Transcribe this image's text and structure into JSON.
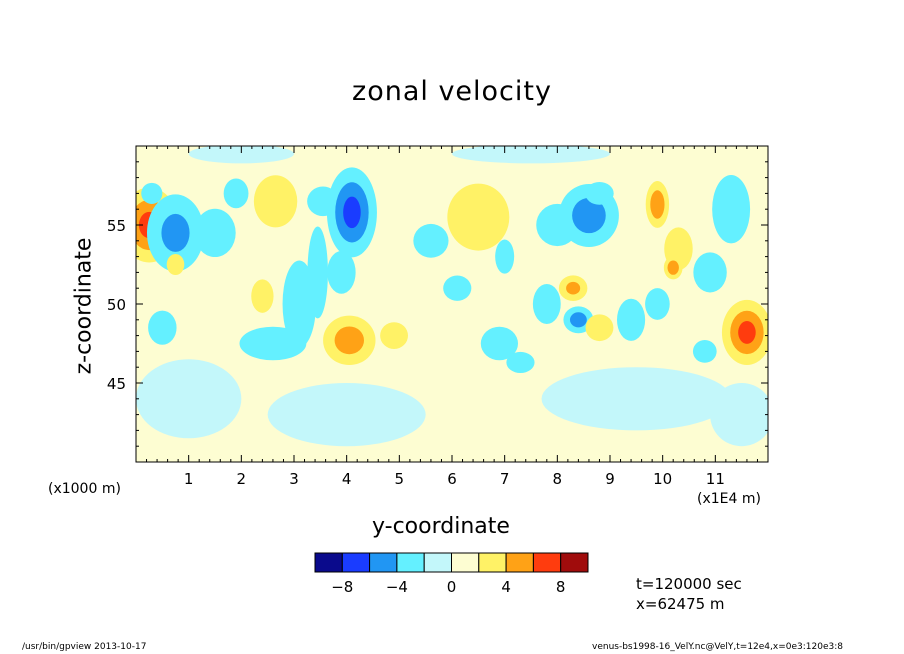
{
  "chart_data": {
    "type": "heatmap",
    "title": "zonal velocity",
    "xlabel": "y-coordinate",
    "ylabel": "z-coordinate",
    "x_unit": "(x1E4 m)",
    "y_unit": "(x1000 m)",
    "xlim": [
      0,
      12
    ],
    "ylim": [
      40,
      60
    ],
    "x_ticks": [
      "1",
      "2",
      "3",
      "4",
      "5",
      "6",
      "7",
      "8",
      "9",
      "10",
      "11"
    ],
    "y_ticks": [
      "45",
      "50",
      "55"
    ],
    "colorbar": {
      "levels": [
        -10,
        -8,
        -6,
        -4,
        -2,
        0,
        2,
        4,
        6,
        8,
        10
      ],
      "labels": [
        "-8",
        "-4",
        "0",
        "4",
        "8"
      ],
      "colors": [
        "#0a0a8c",
        "#1a3cff",
        "#2196f3",
        "#64f0ff",
        "#c3f7fa",
        "#fdfdd2",
        "#fff266",
        "#ffa216",
        "#ff3c0e",
        "#a00c0c"
      ]
    },
    "time_text": "t=120000 sec",
    "position_text": "x=62475 m",
    "background_color": "#fdfdd2",
    "blobs": [
      {
        "y": 0.25,
        "z": 55.0,
        "ry": 0.35,
        "rz": 1.5,
        "v": 7
      },
      {
        "y": 0.3,
        "z": 57.0,
        "ry": 0.3,
        "rz": 1.0,
        "v": -2.5
      },
      {
        "y": 0.75,
        "z": 54.5,
        "ry": 0.4,
        "rz": 1.8,
        "v": -5
      },
      {
        "y": 0.5,
        "z": 48.5,
        "ry": 0.3,
        "rz": 1.2,
        "v": -3
      },
      {
        "y": 0.75,
        "z": 52.5,
        "ry": 0.25,
        "rz": 1.0,
        "v": 2.5
      },
      {
        "y": 1.5,
        "z": 54.5,
        "ry": 0.9,
        "rz": 3.5,
        "v": -2.2
      },
      {
        "y": 1.9,
        "z": 57.0,
        "ry": 0.2,
        "rz": 0.8,
        "v": -4
      },
      {
        "y": 2.4,
        "z": 50.5,
        "ry": 0.2,
        "rz": 1.0,
        "v": 3.5
      },
      {
        "y": 2.65,
        "z": 56.5,
        "ry": 0.35,
        "rz": 1.4,
        "v": 4
      },
      {
        "y": 2.6,
        "z": 47.5,
        "ry": 0.6,
        "rz": 1.0,
        "v": -3.5
      },
      {
        "y": 3.1,
        "z": 50.0,
        "ry": 0.3,
        "rz": 2.6,
        "v": -3.5
      },
      {
        "y": 3.45,
        "z": 52.0,
        "ry": 0.2,
        "rz": 3.0,
        "v": -3.2
      },
      {
        "y": 3.55,
        "z": 56.5,
        "ry": 0.45,
        "rz": 1.4,
        "v": -2.5
      },
      {
        "y": 4.1,
        "z": 55.8,
        "ry": 0.3,
        "rz": 1.8,
        "v": -7
      },
      {
        "y": 3.9,
        "z": 52.0,
        "ry": 0.3,
        "rz": 1.5,
        "v": -3
      },
      {
        "y": 4.05,
        "z": 47.7,
        "ry": 0.35,
        "rz": 1.1,
        "v": 5.5
      },
      {
        "y": 4.9,
        "z": 48.0,
        "ry": 0.25,
        "rz": 0.8,
        "v": 3.5
      },
      {
        "y": 5.6,
        "z": 54.0,
        "ry": 0.5,
        "rz": 1.6,
        "v": -2.5
      },
      {
        "y": 6.5,
        "z": 55.5,
        "ry": 0.5,
        "rz": 1.8,
        "v": 4
      },
      {
        "y": 6.1,
        "z": 51.0,
        "ry": 0.4,
        "rz": 1.2,
        "v": -2.5
      },
      {
        "y": 6.9,
        "z": 47.5,
        "ry": 0.3,
        "rz": 0.9,
        "v": -4
      },
      {
        "y": 7.0,
        "z": 53.0,
        "ry": 0.2,
        "rz": 1.2,
        "v": -3
      },
      {
        "y": 7.3,
        "z": 46.3,
        "ry": 0.4,
        "rz": 1.0,
        "v": -2.5
      },
      {
        "y": 8.0,
        "z": 55.0,
        "ry": 0.6,
        "rz": 2.0,
        "v": -2.5
      },
      {
        "y": 8.6,
        "z": 55.6,
        "ry": 0.4,
        "rz": 1.4,
        "v": -5.5
      },
      {
        "y": 8.8,
        "z": 57.0,
        "ry": 0.3,
        "rz": 0.8,
        "v": -3
      },
      {
        "y": 7.8,
        "z": 50.0,
        "ry": 0.25,
        "rz": 1.2,
        "v": -3.5
      },
      {
        "y": 8.3,
        "z": 51.0,
        "ry": 0.2,
        "rz": 0.6,
        "v": 5
      },
      {
        "y": 8.4,
        "z": 49.0,
        "ry": 0.2,
        "rz": 0.6,
        "v": -5.5
      },
      {
        "y": 8.8,
        "z": 48.5,
        "ry": 0.25,
        "rz": 0.8,
        "v": 3.5
      },
      {
        "y": 9.4,
        "z": 49.0,
        "ry": 0.4,
        "rz": 2.0,
        "v": -2.5
      },
      {
        "y": 9.9,
        "z": 56.3,
        "ry": 0.15,
        "rz": 1.0,
        "v": 6
      },
      {
        "y": 10.3,
        "z": 53.5,
        "ry": 0.3,
        "rz": 1.5,
        "v": 3
      },
      {
        "y": 10.2,
        "z": 52.3,
        "ry": 0.12,
        "rz": 0.5,
        "v": 6
      },
      {
        "y": 9.9,
        "z": 50.0,
        "ry": 0.35,
        "rz": 1.5,
        "v": -2.5
      },
      {
        "y": 10.9,
        "z": 52.0,
        "ry": 0.3,
        "rz": 1.2,
        "v": -3.5
      },
      {
        "y": 11.3,
        "z": 56.0,
        "ry": 0.4,
        "rz": 2.4,
        "v": -3
      },
      {
        "y": 11.6,
        "z": 48.2,
        "ry": 0.3,
        "rz": 1.3,
        "v": 7
      },
      {
        "y": 10.8,
        "z": 47.0,
        "ry": 0.25,
        "rz": 0.8,
        "v": -3
      },
      {
        "y": 6.5,
        "z": 41.5,
        "ry": 2.0,
        "rz": 1.0,
        "v": 1.2
      },
      {
        "y": 4.0,
        "z": 43.0,
        "ry": 1.5,
        "rz": 2.0,
        "v": -1.3
      },
      {
        "y": 9.5,
        "z": 44.0,
        "ry": 1.8,
        "rz": 2.0,
        "v": -1.2
      },
      {
        "y": 1.0,
        "z": 44.0,
        "ry": 1.0,
        "rz": 2.5,
        "v": -1.4
      },
      {
        "y": 11.5,
        "z": 43.0,
        "ry": 0.6,
        "rz": 2.0,
        "v": -1.3
      },
      {
        "y": 7.5,
        "z": 59.5,
        "ry": 1.5,
        "rz": 0.6,
        "v": -1.3
      },
      {
        "y": 2.0,
        "z": 59.5,
        "ry": 1.0,
        "rz": 0.6,
        "v": -1.4
      }
    ]
  },
  "footer": {
    "left": "/usr/bin/gpview   2013-10-17",
    "right": "venus-bs1998-16_VelY.nc@VelY,t=12e4,x=0e3:120e3:8"
  }
}
